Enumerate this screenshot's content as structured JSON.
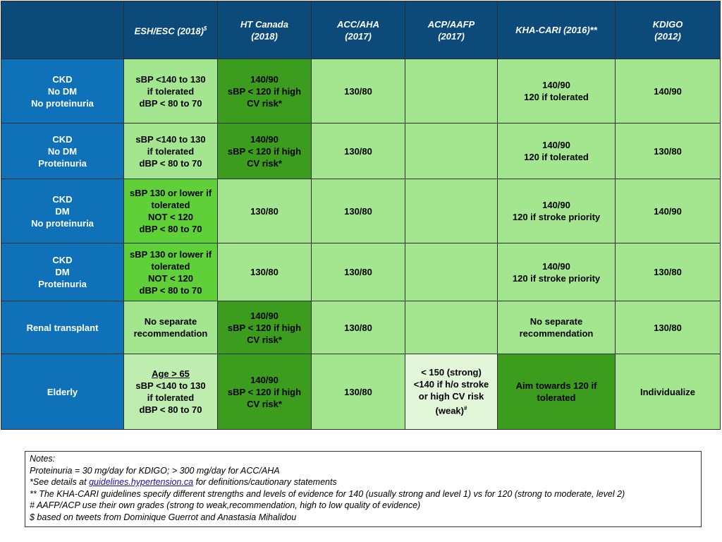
{
  "header": {
    "cols": [
      {
        "label": "ESH/ESC (2018)",
        "sup": "$"
      },
      {
        "line1": "HT Canada",
        "line2": "(2018)"
      },
      {
        "line1": "ACC/AHA",
        "line2": "(2017)"
      },
      {
        "line1": "ACP/AAFP",
        "line2": "(2017)"
      },
      {
        "label": "KHA-CARI (2016)**"
      },
      {
        "line1": "KDIGO",
        "line2": "(2012)"
      }
    ]
  },
  "rows": [
    {
      "label": [
        "CKD",
        "No DM",
        "No proteinuria"
      ],
      "esh": [
        "sBP <140 to 130",
        "if tolerated",
        "dBP < 80 to 70"
      ],
      "htcanada": [
        "140/90",
        "sBP < 120 if high",
        "CV risk*"
      ],
      "accaha": [
        "130/80"
      ],
      "acpaafp": [],
      "khacari": [
        "140/90",
        "120 if tolerated"
      ],
      "kdigo": [
        "140/90"
      ]
    },
    {
      "label": [
        "CKD",
        "No DM",
        "Proteinuria"
      ],
      "esh": [
        "sBP <140 to 130",
        "if tolerated",
        "dBP < 80 to 70"
      ],
      "htcanada": [
        "140/90",
        "sBP < 120 if high",
        "CV risk*"
      ],
      "accaha": [
        "130/80"
      ],
      "acpaafp": [],
      "khacari": [
        "140/90",
        "120 if tolerated"
      ],
      "kdigo": [
        "130/80"
      ]
    },
    {
      "label": [
        "CKD",
        "DM",
        "No proteinuria"
      ],
      "esh": [
        "sBP 130 or lower if",
        "tolerated",
        "NOT < 120",
        "dBP < 80 to 70"
      ],
      "htcanada": [
        "130/80"
      ],
      "accaha": [
        "130/80"
      ],
      "acpaafp": [],
      "khacari": [
        "140/90",
        "120 if stroke priority"
      ],
      "kdigo": [
        "140/90"
      ]
    },
    {
      "label": [
        "CKD",
        "DM",
        "Proteinuria"
      ],
      "esh": [
        "sBP 130 or lower if",
        "tolerated",
        "NOT < 120",
        "dBP < 80 to 70"
      ],
      "htcanada": [
        "130/80"
      ],
      "accaha": [
        "130/80"
      ],
      "acpaafp": [],
      "khacari": [
        "140/90",
        "120 if stroke priority"
      ],
      "kdigo": [
        "130/80"
      ]
    },
    {
      "label": [
        "Renal transplant"
      ],
      "esh": [
        "No separate",
        "recommendation"
      ],
      "htcanada": [
        "140/90",
        "sBP < 120 if high",
        "CV risk*"
      ],
      "accaha": [
        "130/80"
      ],
      "acpaafp": [],
      "khacari": [
        "No separate",
        "recommendation"
      ],
      "kdigo": [
        "130/80"
      ]
    },
    {
      "label": [
        "Elderly"
      ],
      "esh": [
        "Age > 65",
        "sBP <140 to 130",
        "if tolerated",
        "dBP < 80 to 70"
      ],
      "htcanada": [
        "140/90",
        "sBP < 120 if high",
        "CV risk*"
      ],
      "accaha": [
        "130/80"
      ],
      "acpaafp": [
        "< 150 (strong)",
        "<140 if h/o stroke",
        "or high CV risk",
        "(weak)"
      ],
      "acpaafp_sup": "#",
      "khacari": [
        "Aim towards 120 if",
        "tolerated"
      ],
      "kdigo": [
        "Individualize"
      ]
    }
  ],
  "notes": {
    "title": "Notes:",
    "line1": "Proteinuria = 30 mg/day for KDIGO; > 300 mg/day for ACC/AHA",
    "line2_pre": "*See details at ",
    "line2_link": "guidelines.hypertension.ca",
    "line2_post": " for definitions/cautionary statements",
    "line3": "** The KHA-CARI guidelines specify different strengths and levels of evidence for 140 (usually strong and level 1) vs for 120 (strong to moderate, level 2)",
    "line4": "# AAFP/ACP use their own grades (strong to weak,recommendation, high to low quality of evidence)",
    "line5": "$ based on tweets from Dominique Guerrot and Anastasia Mihalidou"
  },
  "colors": {
    "header": "#0c4a7a",
    "row_label": "#0f72b8",
    "pale_green": "#bfedb0",
    "light_green": "#a3e68f",
    "mid_green": "#5fd038",
    "dark_green": "#3c9c1d",
    "extra_pale_green": "#e2f7da"
  }
}
